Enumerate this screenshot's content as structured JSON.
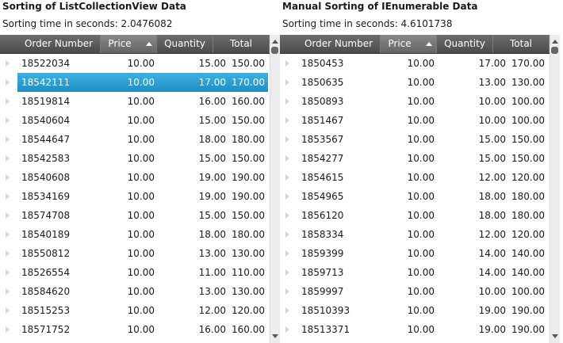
{
  "left": {
    "title": "Sorting of ListCollectionView Data",
    "subtitle": "Sorting time in seconds: 2.0476082",
    "columns": [
      "Order Number",
      "Price",
      "Quantity",
      "Total"
    ],
    "sorted_column": "Price",
    "selected_row": 1,
    "rows": [
      [
        "18522034",
        "10.00",
        "15.00",
        "150.00"
      ],
      [
        "18542111",
        "10.00",
        "17.00",
        "170.00"
      ],
      [
        "18519814",
        "10.00",
        "16.00",
        "160.00"
      ],
      [
        "18540604",
        "10.00",
        "15.00",
        "150.00"
      ],
      [
        "18544647",
        "10.00",
        "18.00",
        "180.00"
      ],
      [
        "18542583",
        "10.00",
        "15.00",
        "150.00"
      ],
      [
        "18540608",
        "10.00",
        "19.00",
        "190.00"
      ],
      [
        "18534169",
        "10.00",
        "19.00",
        "190.00"
      ],
      [
        "18574708",
        "10.00",
        "15.00",
        "150.00"
      ],
      [
        "18540189",
        "10.00",
        "18.00",
        "180.00"
      ],
      [
        "18550812",
        "10.00",
        "13.00",
        "130.00"
      ],
      [
        "18526554",
        "10.00",
        "11.00",
        "110.00"
      ],
      [
        "18584620",
        "10.00",
        "13.00",
        "130.00"
      ],
      [
        "18515253",
        "10.00",
        "12.00",
        "120.00"
      ],
      [
        "18571752",
        "10.00",
        "16.00",
        "160.00"
      ]
    ]
  },
  "right": {
    "title": "Manual Sorting of IEnumerable Data",
    "subtitle": "Sorting time in seconds: 4.6101738",
    "columns": [
      "Order Number",
      "Price",
      "Quantity",
      "Total"
    ],
    "sorted_column": "Price",
    "selected_row": null,
    "rows": [
      [
        "1850453",
        "10.00",
        "17.00",
        "170.00"
      ],
      [
        "1850635",
        "10.00",
        "13.00",
        "130.00"
      ],
      [
        "1850893",
        "10.00",
        "10.00",
        "100.00"
      ],
      [
        "1851467",
        "10.00",
        "10.00",
        "100.00"
      ],
      [
        "1853567",
        "10.00",
        "15.00",
        "150.00"
      ],
      [
        "1854277",
        "10.00",
        "15.00",
        "150.00"
      ],
      [
        "1854615",
        "10.00",
        "12.00",
        "120.00"
      ],
      [
        "1854965",
        "10.00",
        "18.00",
        "180.00"
      ],
      [
        "1856120",
        "10.00",
        "18.00",
        "180.00"
      ],
      [
        "1858334",
        "10.00",
        "12.00",
        "120.00"
      ],
      [
        "1859399",
        "10.00",
        "14.00",
        "140.00"
      ],
      [
        "1859713",
        "10.00",
        "14.00",
        "140.00"
      ],
      [
        "1859997",
        "10.00",
        "10.00",
        "100.00"
      ],
      [
        "18510393",
        "10.00",
        "19.00",
        "190.00"
      ],
      [
        "18513371",
        "10.00",
        "19.00",
        "190.00"
      ]
    ]
  },
  "colors": {
    "header_bg": "#4a4a4a",
    "header_sorted_bg": "#7a7a7a",
    "selection": "#2a9fd6",
    "row_indicator": "#d7d7d7"
  },
  "icons": {
    "sort": "sort-ascending-icon",
    "row": "row-indicator-icon",
    "scroll_up": "scroll-up-icon",
    "scroll_down": "scroll-down-icon"
  }
}
